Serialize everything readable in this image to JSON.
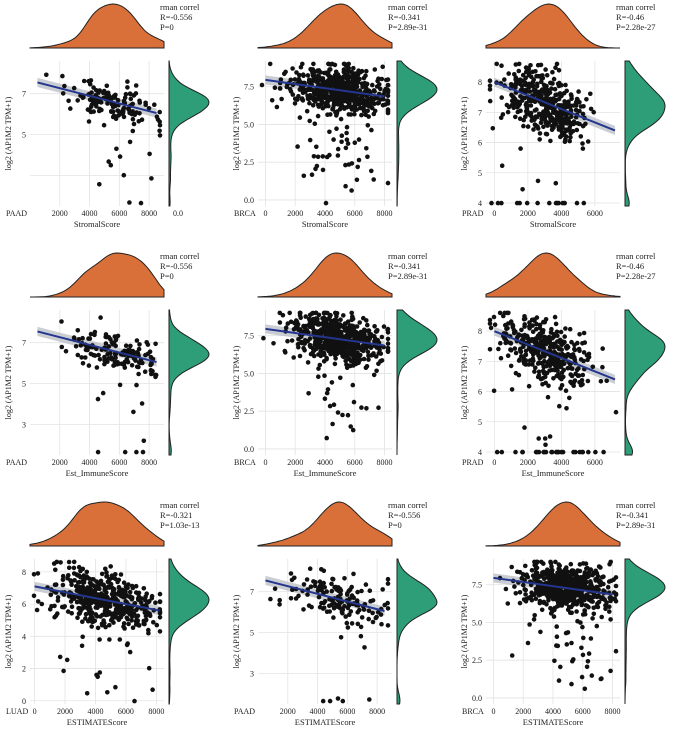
{
  "chart_data": [
    {
      "type": "scatter",
      "cancer": "PAAD",
      "xlabel": "StromalScore",
      "ylabel": "log2 (AP1M2 TPM+1)",
      "xlim": [
        0,
        9000
      ],
      "ylim": [
        1.5,
        8.6
      ],
      "xticks": [
        2000,
        4000,
        6000,
        8000
      ],
      "yticks": [
        3,
        5,
        7
      ],
      "ytick_labels": [
        "",
        "5",
        "7"
      ],
      "extra_xtick": "0.0",
      "stats": {
        "header": "rman correl",
        "r": "R=-0.556",
        "p": "P=0"
      },
      "trend": {
        "x0": 500,
        "y0": 7.55,
        "x1": 8500,
        "y1": 6.05
      },
      "n": 150,
      "seed": 11,
      "xmean": 5600,
      "xsd": 1600,
      "resid": 0.55
    },
    {
      "type": "scatter",
      "cancer": "BRCA",
      "xlabel": "StromalScore",
      "ylabel": "log2 (AP1M2 TPM+1)",
      "xlim": [
        -500,
        8500
      ],
      "ylim": [
        -0.4,
        9.2
      ],
      "xticks": [
        0,
        2000,
        4000,
        6000,
        8000
      ],
      "yticks": [
        0,
        2.5,
        5,
        7.5
      ],
      "ytick_labels": [
        "0.0",
        "2.5",
        "5.0",
        "7.5"
      ],
      "stats": {
        "header": "rman correl",
        "r": "R=-0.341",
        "p": "P=2.89e-31"
      },
      "trend": {
        "x0": 0,
        "y0": 7.95,
        "x1": 8000,
        "y1": 6.85
      },
      "n": 650,
      "seed": 23,
      "xmean": 4800,
      "xsd": 1500,
      "resid": 0.75
    },
    {
      "type": "scatter",
      "cancer": "PRAD",
      "xlabel": "StromalScore",
      "ylabel": "log2 (AP1M2 TPM+1)",
      "xlim": [
        -500,
        7500
      ],
      "ylim": [
        3.9,
        8.7
      ],
      "xticks": [
        0,
        2000,
        4000,
        6000
      ],
      "yticks": [
        4,
        5,
        6,
        7,
        8
      ],
      "ytick_labels": [
        "4",
        "5",
        "6",
        "7",
        "8"
      ],
      "stats": {
        "header": "rman correl",
        "r": "R=-0.46",
        "p": "P=2.28e-27"
      },
      "trend": {
        "x0": 0,
        "y0": 8.0,
        "x1": 7200,
        "y1": 6.4
      },
      "n": 420,
      "seed": 37,
      "xmean": 3000,
      "xsd": 1300,
      "resid": 0.5
    },
    {
      "type": "scatter",
      "cancer": "PAAD",
      "xlabel": "Est_ImmuneScore",
      "ylabel": "log2 (AP1M2 TPM+1)",
      "xlim": [
        0,
        9000
      ],
      "ylim": [
        1.5,
        8.6
      ],
      "xticks": [
        2000,
        4000,
        6000,
        8000
      ],
      "yticks": [
        3,
        5,
        7
      ],
      "ytick_labels": [
        "3",
        "5",
        "7"
      ],
      "stats": {
        "header": "rman correl",
        "r": "R=-0.556",
        "p": "P=0"
      },
      "trend": {
        "x0": 500,
        "y0": 7.55,
        "x1": 8500,
        "y1": 6.05
      },
      "n": 150,
      "seed": 41,
      "xmean": 5600,
      "xsd": 1600,
      "resid": 0.55
    },
    {
      "type": "scatter",
      "cancer": "BRCA",
      "xlabel": "Est_ImmuneScore",
      "ylabel": "log2 (AP1M2 TPM+1)",
      "xlim": [
        -500,
        8500
      ],
      "ylim": [
        -0.4,
        9.2
      ],
      "xticks": [
        0,
        2000,
        4000,
        6000,
        8000
      ],
      "yticks": [
        0,
        2.5,
        5,
        7.5
      ],
      "ytick_labels": [
        "0.0",
        "2.5",
        "5.0",
        "7.5"
      ],
      "stats": {
        "header": "rman correl",
        "r": "R=-0.341",
        "p": "P=2.89e-31"
      },
      "trend": {
        "x0": 0,
        "y0": 7.95,
        "x1": 8000,
        "y1": 6.85
      },
      "n": 650,
      "seed": 53,
      "xmean": 4800,
      "xsd": 1500,
      "resid": 0.75
    },
    {
      "type": "scatter",
      "cancer": "PRAD",
      "xlabel": "Est_ImmuneScore",
      "ylabel": "log2 (AP1M2 TPM+1)",
      "xlim": [
        -500,
        7500
      ],
      "ylim": [
        3.9,
        8.7
      ],
      "xticks": [
        0,
        2000,
        4000,
        6000
      ],
      "yticks": [
        4,
        5,
        6,
        7,
        8
      ],
      "ytick_labels": [
        "4",
        "5",
        "6",
        "7",
        "8"
      ],
      "stats": {
        "header": "rman correl",
        "r": "R=-0.46",
        "p": "P=2.28e-27"
      },
      "trend": {
        "x0": 0,
        "y0": 8.0,
        "x1": 7200,
        "y1": 6.4
      },
      "n": 420,
      "seed": 67,
      "xmean": 3000,
      "xsd": 1300,
      "resid": 0.5
    },
    {
      "type": "scatter",
      "cancer": "LUAD",
      "xlabel": "ESTIMATEScore",
      "ylabel": "log2 (AP1M2 TPM+1)",
      "xlim": [
        -300,
        8500
      ],
      "ylim": [
        -0.2,
        8.8
      ],
      "xticks": [
        0,
        2000,
        4000,
        6000,
        8000
      ],
      "yticks": [
        0,
        2,
        4,
        6,
        8
      ],
      "ytick_labels": [
        "0",
        "2",
        "4",
        "6",
        "8"
      ],
      "stats": {
        "header": "rman correl",
        "r": "R=-0.321",
        "p": "P=1.03e-13"
      },
      "trend": {
        "x0": 0,
        "y0": 7.1,
        "x1": 8200,
        "y1": 5.6
      },
      "n": 480,
      "seed": 79,
      "xmean": 4500,
      "xsd": 1700,
      "resid": 0.8
    },
    {
      "type": "scatter",
      "cancer": "PAAD",
      "xlabel": "ESTIMATEScore",
      "ylabel": "log2 (AP1M2 TPM+1)",
      "xlim": [
        0,
        9000
      ],
      "ylim": [
        1.5,
        8.6
      ],
      "xticks": [
        2000,
        4000,
        6000,
        8000
      ],
      "yticks": [
        3,
        5,
        7
      ],
      "ytick_labels": [
        "3",
        "5",
        "7"
      ],
      "stats": {
        "header": "rman correl",
        "r": "R=-0.556",
        "p": "P=0"
      },
      "trend": {
        "x0": 500,
        "y0": 7.55,
        "x1": 8500,
        "y1": 6.05
      },
      "n": 150,
      "seed": 83,
      "xmean": 5600,
      "xsd": 1600,
      "resid": 0.55
    },
    {
      "type": "scatter",
      "cancer": "BRCA",
      "xlabel": "ESTIMATEScore",
      "ylabel": "log2 (AP1M2 TPM+1)",
      "xlim": [
        -500,
        8500
      ],
      "ylim": [
        -0.4,
        9.2
      ],
      "xticks": [
        0,
        2000,
        4000,
        6000,
        8000
      ],
      "yticks": [
        0,
        2.5,
        5,
        7.5
      ],
      "ytick_labels": [
        "0.0",
        "2.5",
        "5.0",
        "7.5"
      ],
      "stats": {
        "header": "rman correl",
        "r": "R=-0.341",
        "p": "P=2.89e-31"
      },
      "trend": {
        "x0": 0,
        "y0": 7.95,
        "x1": 8000,
        "y1": 6.85
      },
      "n": 650,
      "seed": 97,
      "xmean": 4800,
      "xsd": 1500,
      "resid": 0.75
    }
  ],
  "colors": {
    "x_density": "#d9703a",
    "y_density": "#2e9e78",
    "points": "#111111",
    "trend": "#24368f",
    "band": "#b8bdc4",
    "grid": "#e3e3e3"
  }
}
